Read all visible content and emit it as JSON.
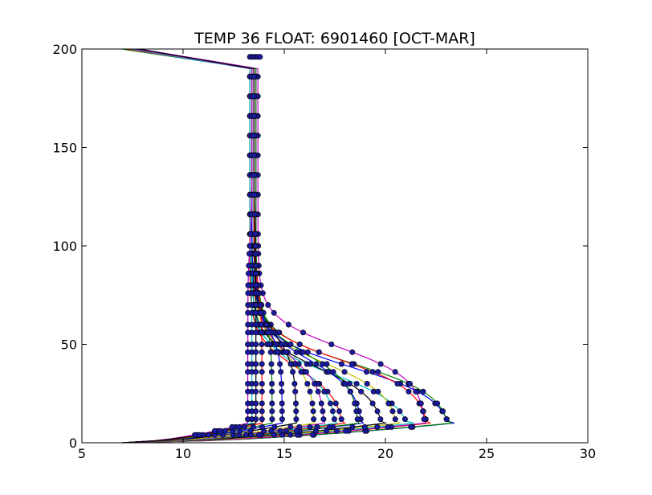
{
  "chart_data": {
    "type": "line",
    "title": "TEMP 36 FLOAT: 6901460 [OCT-MAR]",
    "xlabel": "",
    "ylabel": "",
    "xlim": [
      5,
      30
    ],
    "ylim": [
      0,
      200
    ],
    "x_ticks": [
      "5",
      "10",
      "15",
      "20",
      "25",
      "30"
    ],
    "y_ticks": [
      "0",
      "50",
      "100",
      "150",
      "200"
    ],
    "grid": false,
    "legend": "none",
    "point_color": "#1a1aa0",
    "series": [
      {
        "color": "#0000ff",
        "surface": 23.4,
        "mixed": 23.4,
        "thermo": 38,
        "deep": 13.5,
        "surfdepth": 10
      },
      {
        "color": "#008000",
        "surface": 23.3,
        "mixed": 23.3,
        "thermo": 40,
        "deep": 13.6,
        "surfdepth": 10
      },
      {
        "color": "#ff0000",
        "surface": 22.2,
        "mixed": 22.2,
        "thermo": 42,
        "deep": 13.4,
        "surfdepth": 10
      },
      {
        "color": "#00bfbf",
        "surface": 21.4,
        "mixed": 21.4,
        "thermo": 35,
        "deep": 13.3,
        "surfdepth": 10
      },
      {
        "color": "#bf00bf",
        "surface": 22.0,
        "mixed": 22.0,
        "thermo": 48,
        "deep": 13.7,
        "surfdepth": 10
      },
      {
        "color": "#bfbf00",
        "surface": 20.7,
        "mixed": 20.7,
        "thermo": 40,
        "deep": 13.5,
        "surfdepth": 10
      },
      {
        "color": "#000000",
        "surface": 20.0,
        "mixed": 20.0,
        "thermo": 38,
        "deep": 13.4,
        "surfdepth": 10
      },
      {
        "color": "#0000ff",
        "surface": 18.9,
        "mixed": 18.9,
        "thermo": 42,
        "deep": 13.6,
        "surfdepth": 10
      },
      {
        "color": "#008000",
        "surface": 18.7,
        "mixed": 18.7,
        "thermo": 45,
        "deep": 13.5,
        "surfdepth": 10
      },
      {
        "color": "#ff0000",
        "surface": 18.0,
        "mixed": 18.0,
        "thermo": 38,
        "deep": 13.3,
        "surfdepth": 10
      },
      {
        "color": "#00bfbf",
        "surface": 17.6,
        "mixed": 17.6,
        "thermo": 40,
        "deep": 13.4,
        "surfdepth": 10
      },
      {
        "color": "#bf00bf",
        "surface": 17.0,
        "mixed": 17.0,
        "thermo": 44,
        "deep": 13.6,
        "surfdepth": 10
      },
      {
        "color": "#bfbf00",
        "surface": 16.5,
        "mixed": 16.5,
        "thermo": 46,
        "deep": 13.5,
        "surfdepth": 10
      },
      {
        "color": "#000000",
        "surface": 15.6,
        "mixed": 15.6,
        "thermo": 55,
        "deep": 13.5,
        "surfdepth": 10
      },
      {
        "color": "#0000ff",
        "surface": 14.9,
        "mixed": 14.9,
        "thermo": 60,
        "deep": 13.4,
        "surfdepth": 10
      },
      {
        "color": "#008000",
        "surface": 14.4,
        "mixed": 14.4,
        "thermo": 65,
        "deep": 13.6,
        "surfdepth": 10
      },
      {
        "color": "#ff0000",
        "surface": 13.9,
        "mixed": 13.9,
        "thermo": 80,
        "deep": 13.5,
        "surfdepth": 10
      },
      {
        "color": "#00bfbf",
        "surface": 13.4,
        "mixed": 13.4,
        "thermo": 90,
        "deep": 13.3,
        "surfdepth": 10
      },
      {
        "color": "#bf00bf",
        "surface": 13.2,
        "mixed": 13.2,
        "thermo": 100,
        "deep": 13.4,
        "surfdepth": 10
      },
      {
        "color": "#000000",
        "surface": 13.6,
        "mixed": 13.6,
        "thermo": 110,
        "deep": 13.5,
        "surfdepth": 10
      }
    ]
  }
}
